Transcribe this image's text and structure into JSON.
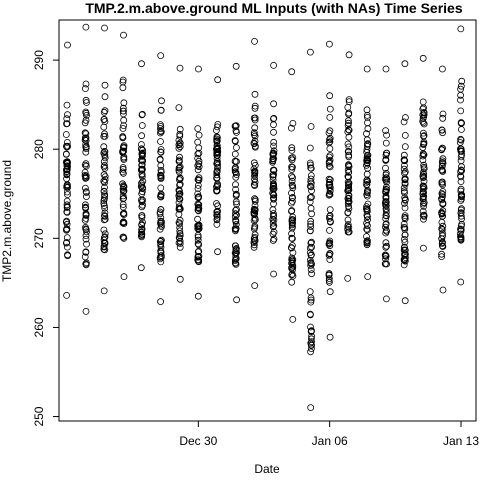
{
  "chart_data": {
    "type": "scatter",
    "title": "TMP.2.m.above.ground ML Inputs (with NAs) Time Series",
    "xlabel": "Date",
    "ylabel": "TMP2.m.above.ground",
    "x_ticks": [
      {
        "date": "2019-12-30",
        "label": "Dec 30"
      },
      {
        "date": "2020-01-06",
        "label": "Jan 06"
      },
      {
        "date": "2020-01-13",
        "label": "Jan 13"
      }
    ],
    "y_ticks": [
      250,
      260,
      270,
      280,
      290
    ],
    "xlim": [
      "2019-12-23",
      "2020-01-13"
    ],
    "ylim": [
      249.5,
      294.5
    ],
    "marker": "open-circle",
    "color": "#000000",
    "series": [
      {
        "columns": [
          {
            "date": "2019-12-23",
            "min": 263.6,
            "max": 291.7
          },
          {
            "date": "2019-12-24",
            "min": 261.8,
            "max": 293.7
          },
          {
            "date": "2019-12-25",
            "min": 264.1,
            "max": 293.6
          },
          {
            "date": "2019-12-26",
            "min": 265.7,
            "max": 292.8
          },
          {
            "date": "2019-12-27",
            "min": 266.7,
            "max": 289.6
          },
          {
            "date": "2019-12-28",
            "min": 262.9,
            "max": 290.5
          },
          {
            "date": "2019-12-29",
            "min": 265.4,
            "max": 289.1
          },
          {
            "date": "2019-12-30",
            "min": 263.5,
            "max": 289.0
          },
          {
            "date": "2019-12-31",
            "min": 268.5,
            "max": 287.8
          },
          {
            "date": "2020-01-01",
            "min": 263.1,
            "max": 289.3
          },
          {
            "date": "2020-01-02",
            "min": 264.7,
            "max": 292.1
          },
          {
            "date": "2020-01-03",
            "min": 266.0,
            "max": 289.4
          },
          {
            "date": "2020-01-04",
            "min": 260.9,
            "max": 288.7
          },
          {
            "date": "2020-01-05",
            "min": 251.0,
            "max": 290.9
          },
          {
            "date": "2020-01-06",
            "min": 258.9,
            "max": 291.8
          },
          {
            "date": "2020-01-07",
            "min": 265.5,
            "max": 290.6
          },
          {
            "date": "2020-01-08",
            "min": 265.7,
            "max": 289.0
          },
          {
            "date": "2020-01-09",
            "min": 263.2,
            "max": 289.0
          },
          {
            "date": "2020-01-10",
            "min": 263.0,
            "max": 289.6
          },
          {
            "date": "2020-01-11",
            "min": 268.9,
            "max": 290.2
          },
          {
            "date": "2020-01-12",
            "min": 264.2,
            "max": 289.0
          },
          {
            "date": "2020-01-13",
            "min": 265.1,
            "max": 293.5
          }
        ]
      }
    ]
  }
}
